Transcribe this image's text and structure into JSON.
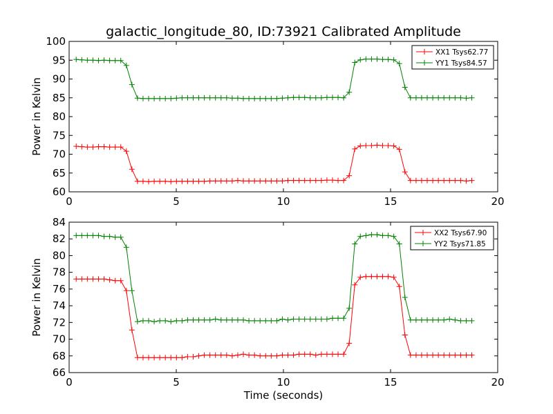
{
  "title": "galactic_longitude_80, ID:73921 Calibrated Amplitude",
  "chart_data": [
    {
      "type": "line",
      "ylabel": "Power in Kelvin",
      "xlabel": "",
      "xlim": [
        0,
        20
      ],
      "ylim": [
        60,
        100
      ],
      "xticks": [
        0,
        5,
        10,
        15,
        20
      ],
      "yticks": [
        60,
        65,
        70,
        75,
        80,
        85,
        90,
        95,
        100
      ],
      "grid": false,
      "legend_position": "top-right",
      "x": [
        0.33,
        0.59,
        0.85,
        1.11,
        1.37,
        1.63,
        1.89,
        2.15,
        2.41,
        2.67,
        2.93,
        3.19,
        3.45,
        3.71,
        3.97,
        4.23,
        4.49,
        4.75,
        5.01,
        5.27,
        5.53,
        5.79,
        6.05,
        6.31,
        6.57,
        6.83,
        7.09,
        7.35,
        7.61,
        7.87,
        8.13,
        8.39,
        8.65,
        8.91,
        9.17,
        9.43,
        9.69,
        9.95,
        10.21,
        10.47,
        10.73,
        10.99,
        11.25,
        11.51,
        11.77,
        12.03,
        12.29,
        12.55,
        12.81,
        13.07,
        13.33,
        13.59,
        13.85,
        14.11,
        14.37,
        14.63,
        14.89,
        15.15,
        15.41,
        15.67,
        15.93,
        16.19,
        16.45,
        16.71,
        16.97,
        17.23,
        17.49,
        17.75,
        18.01,
        18.27,
        18.53,
        18.79
      ],
      "series": [
        {
          "name": "XX1 Tsys62.77",
          "color": "#ff0000",
          "values": [
            72.1,
            72.0,
            71.9,
            71.9,
            72.0,
            72.0,
            71.9,
            71.9,
            71.9,
            70.8,
            66.0,
            62.8,
            62.8,
            62.7,
            62.8,
            62.8,
            62.8,
            62.7,
            62.8,
            62.8,
            62.8,
            62.8,
            62.8,
            62.8,
            62.9,
            62.9,
            62.9,
            62.9,
            62.9,
            63.0,
            62.9,
            62.9,
            62.9,
            62.9,
            62.9,
            62.9,
            62.9,
            62.9,
            63.0,
            63.0,
            63.0,
            63.0,
            63.0,
            63.0,
            63.0,
            63.1,
            63.1,
            63.0,
            63.0,
            64.3,
            71.4,
            72.2,
            72.3,
            72.3,
            72.4,
            72.3,
            72.3,
            72.2,
            71.3,
            65.3,
            63.0,
            63.0,
            63.0,
            63.0,
            63.0,
            63.0,
            63.0,
            63.0,
            63.0,
            63.0,
            62.9,
            63.0
          ]
        },
        {
          "name": "YY1 Tsys84.57",
          "color": "#008000",
          "values": [
            95.2,
            95.1,
            95.0,
            95.0,
            94.9,
            95.0,
            94.9,
            94.9,
            94.9,
            93.6,
            88.5,
            84.9,
            84.8,
            84.8,
            84.8,
            84.8,
            84.8,
            84.8,
            84.9,
            85.0,
            85.0,
            85.0,
            85.0,
            85.0,
            85.0,
            85.0,
            85.0,
            85.0,
            84.9,
            84.9,
            84.8,
            84.8,
            84.8,
            84.8,
            84.8,
            84.8,
            84.8,
            84.9,
            85.0,
            85.1,
            85.1,
            85.1,
            85.0,
            85.0,
            85.0,
            85.1,
            85.1,
            85.1,
            85.0,
            86.5,
            94.4,
            95.1,
            95.3,
            95.3,
            95.3,
            95.2,
            95.2,
            95.1,
            94.1,
            87.8,
            85.0,
            85.0,
            85.0,
            85.0,
            85.0,
            85.0,
            85.0,
            85.0,
            85.0,
            85.0,
            84.9,
            85.0
          ]
        }
      ]
    },
    {
      "type": "line",
      "ylabel": "Power in Kelvin",
      "xlabel": "Time (seconds)",
      "xlim": [
        0,
        20
      ],
      "ylim": [
        66,
        84
      ],
      "xticks": [
        0,
        5,
        10,
        15,
        20
      ],
      "yticks": [
        66,
        68,
        70,
        72,
        74,
        76,
        78,
        80,
        82,
        84
      ],
      "grid": false,
      "legend_position": "top-right",
      "x": [
        0.33,
        0.59,
        0.85,
        1.11,
        1.37,
        1.63,
        1.89,
        2.15,
        2.41,
        2.67,
        2.93,
        3.19,
        3.45,
        3.71,
        3.97,
        4.23,
        4.49,
        4.75,
        5.01,
        5.27,
        5.53,
        5.79,
        6.05,
        6.31,
        6.57,
        6.83,
        7.09,
        7.35,
        7.61,
        7.87,
        8.13,
        8.39,
        8.65,
        8.91,
        9.17,
        9.43,
        9.69,
        9.95,
        10.21,
        10.47,
        10.73,
        10.99,
        11.25,
        11.51,
        11.77,
        12.03,
        12.29,
        12.55,
        12.81,
        13.07,
        13.33,
        13.59,
        13.85,
        14.11,
        14.37,
        14.63,
        14.89,
        15.15,
        15.41,
        15.67,
        15.93,
        16.19,
        16.45,
        16.71,
        16.97,
        17.23,
        17.49,
        17.75,
        18.01,
        18.27,
        18.53,
        18.79
      ],
      "series": [
        {
          "name": "XX2 Tsys67.90",
          "color": "#ff0000",
          "values": [
            77.2,
            77.2,
            77.2,
            77.2,
            77.2,
            77.2,
            77.1,
            77.0,
            77.0,
            75.8,
            71.1,
            67.8,
            67.8,
            67.8,
            67.8,
            67.8,
            67.8,
            67.8,
            67.8,
            67.8,
            67.9,
            67.9,
            68.0,
            68.1,
            68.1,
            68.1,
            68.1,
            68.1,
            68.0,
            68.1,
            68.2,
            68.1,
            68.1,
            68.0,
            68.0,
            68.0,
            68.0,
            68.1,
            68.1,
            68.1,
            68.2,
            68.2,
            68.2,
            68.1,
            68.2,
            68.2,
            68.2,
            68.2,
            68.2,
            69.5,
            76.5,
            77.4,
            77.5,
            77.5,
            77.5,
            77.5,
            77.5,
            77.4,
            76.3,
            70.5,
            68.1,
            68.1,
            68.1,
            68.1,
            68.1,
            68.1,
            68.1,
            68.1,
            68.1,
            68.1,
            68.1,
            68.1
          ]
        },
        {
          "name": "YY2 Tsys71.85",
          "color": "#008000",
          "values": [
            82.4,
            82.4,
            82.4,
            82.4,
            82.4,
            82.3,
            82.3,
            82.2,
            82.2,
            81.0,
            75.8,
            72.1,
            72.2,
            72.2,
            72.1,
            72.2,
            72.2,
            72.1,
            72.2,
            72.2,
            72.3,
            72.3,
            72.3,
            72.3,
            72.3,
            72.4,
            72.3,
            72.3,
            72.3,
            72.3,
            72.3,
            72.2,
            72.2,
            72.2,
            72.2,
            72.2,
            72.2,
            72.4,
            72.3,
            72.4,
            72.4,
            72.4,
            72.4,
            72.4,
            72.4,
            72.4,
            72.5,
            72.5,
            72.5,
            73.7,
            81.4,
            82.3,
            82.4,
            82.5,
            82.5,
            82.4,
            82.4,
            82.3,
            81.4,
            75.0,
            72.3,
            72.3,
            72.3,
            72.3,
            72.3,
            72.3,
            72.3,
            72.4,
            72.3,
            72.2,
            72.2,
            72.2
          ]
        }
      ]
    }
  ]
}
